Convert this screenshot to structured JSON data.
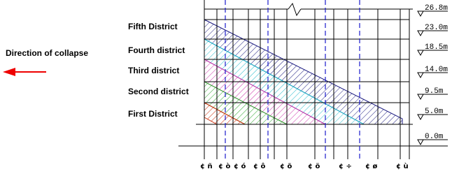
{
  "direction_label": "Direction of collapse",
  "districts": [
    "Fifth District",
    "Fourth district",
    "Third district",
    "Second district",
    "First District"
  ],
  "elevations": [
    "26.8m",
    "23.0m",
    "18.5m",
    "14.0m",
    "9.5m",
    "5.0m",
    "0.0m"
  ],
  "axis_labels": [
    "¢ ñ",
    "¢ ò",
    "¢ ó",
    "¢ ô",
    "¢ õ",
    "¢ ö",
    "¢ ÷",
    "¢ ø",
    "¢ ù"
  ]
}
